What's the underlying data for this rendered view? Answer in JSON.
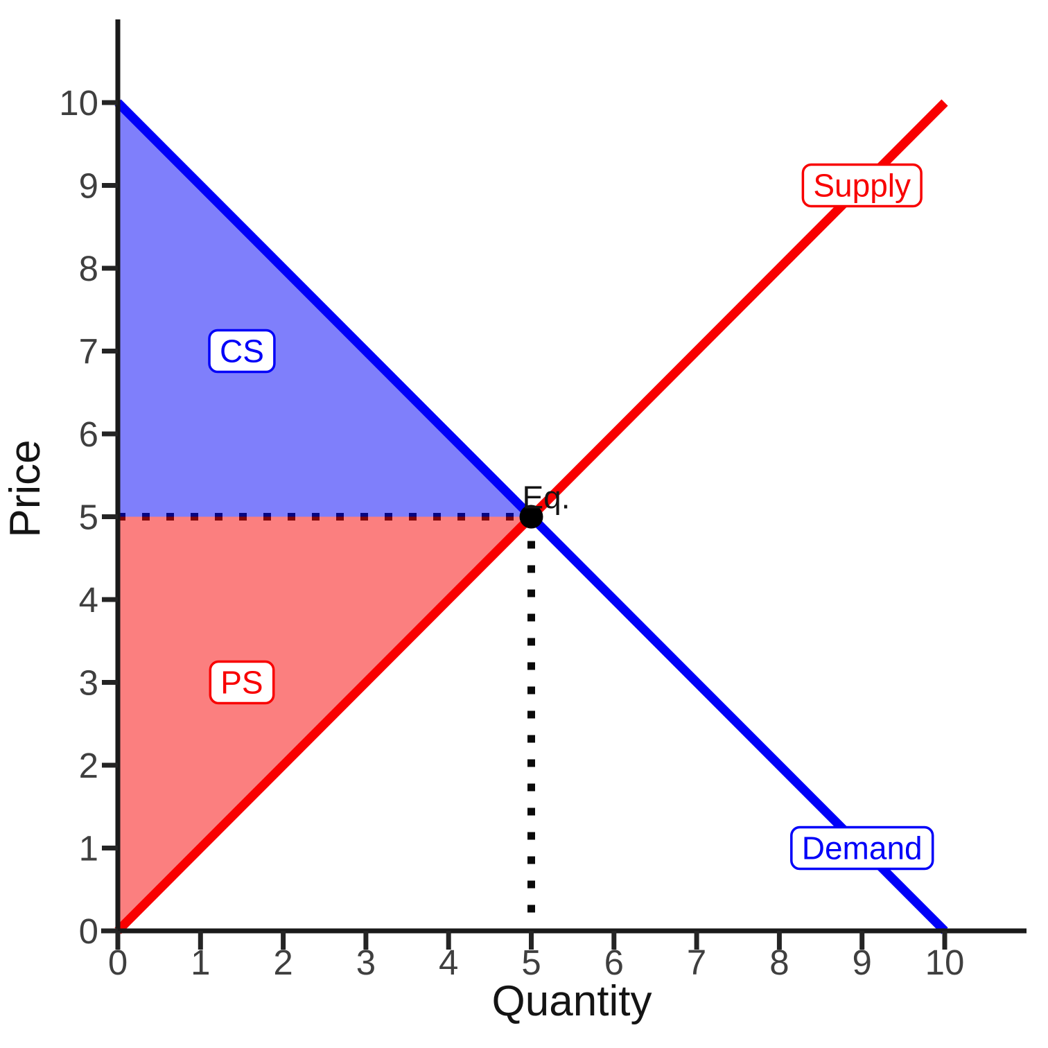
{
  "chart_data": {
    "type": "line",
    "title": "",
    "xlabel": "Quantity",
    "ylabel": "Price",
    "xlim": [
      0,
      10
    ],
    "ylim": [
      0,
      10
    ],
    "grid": false,
    "x_ticks": [
      0,
      1,
      2,
      3,
      4,
      5,
      6,
      7,
      8,
      9,
      10
    ],
    "y_ticks": [
      0,
      1,
      2,
      3,
      4,
      5,
      6,
      7,
      8,
      9,
      10
    ],
    "series": [
      {
        "name": "Supply",
        "color": "#f80000",
        "x": [
          0,
          10
        ],
        "y": [
          0,
          10
        ],
        "label": {
          "text": "Supply",
          "x": 9,
          "y": 9
        }
      },
      {
        "name": "Demand",
        "color": "#0000f8",
        "x": [
          0,
          10
        ],
        "y": [
          10,
          0
        ],
        "label": {
          "text": "Demand",
          "x": 9,
          "y": 1
        }
      }
    ],
    "regions": [
      {
        "name": "consumer-surplus",
        "color": "#0000f8",
        "opacity": 0.5,
        "points": [
          [
            0,
            10
          ],
          [
            5,
            5
          ],
          [
            0,
            5
          ]
        ],
        "label": {
          "text": "CS",
          "x": 1.5,
          "y": 7
        }
      },
      {
        "name": "producer-surplus",
        "color": "#f80000",
        "opacity": 0.5,
        "points": [
          [
            0,
            0
          ],
          [
            5,
            5
          ],
          [
            0,
            5
          ]
        ],
        "label": {
          "text": "PS",
          "x": 1.5,
          "y": 3
        }
      }
    ],
    "equilibrium": {
      "x": 5,
      "y": 5,
      "label": "Eq.",
      "guide_style": "dotted"
    },
    "colors": {
      "axis": "#1a1a1a",
      "tick_label": "#3f3f3f",
      "equilibrium_point": "#000000",
      "label_box_background": "#ffffff"
    }
  }
}
